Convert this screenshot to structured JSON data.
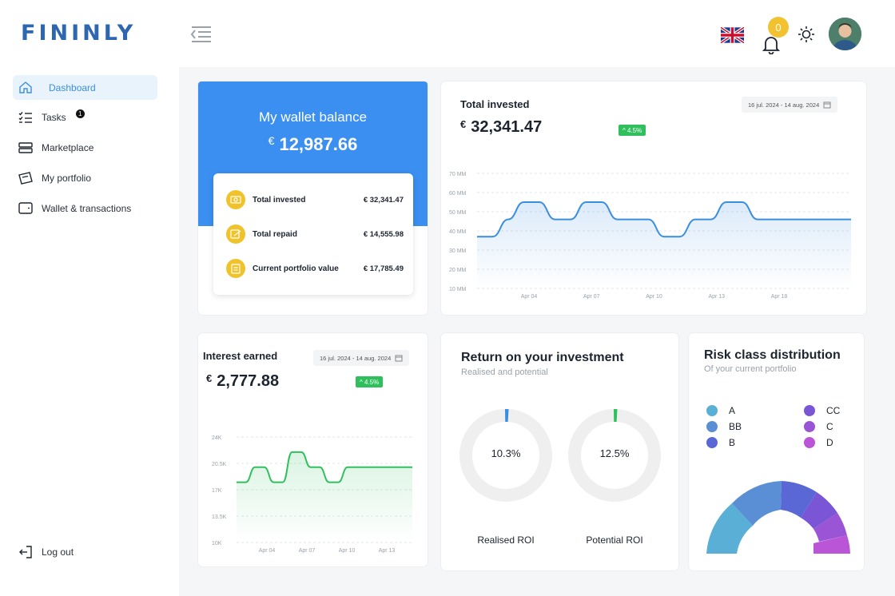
{
  "brand": {
    "name": "FININLY"
  },
  "header": {
    "notification_count": "0"
  },
  "sidebar": {
    "items": [
      {
        "label": "Dashboard",
        "icon": "home-icon",
        "active": true
      },
      {
        "label": "Tasks",
        "icon": "tasks-icon",
        "badge": "1"
      },
      {
        "label": "Marketplace",
        "icon": "marketplace-icon"
      },
      {
        "label": "My portfolio",
        "icon": "portfolio-icon"
      },
      {
        "label": "Wallet & transactions",
        "icon": "wallet-icon"
      }
    ],
    "logout_label": "Log out"
  },
  "wallet": {
    "title": "My wallet balance",
    "currency": "€",
    "amount": "12,987.66",
    "rows": [
      {
        "label": "Total invested",
        "value": "€ 32,341.47"
      },
      {
        "label": "Total repaid",
        "value": "€ 14,555.98"
      },
      {
        "label": "Current portfolio value",
        "value": "€ 17,785.49"
      }
    ]
  },
  "total_invested": {
    "title": "Total invested",
    "currency": "€",
    "amount": "32,341.47",
    "change": "^ 4.5%",
    "date_range": "16 jul. 2024 - 14 aug. 2024"
  },
  "interest_earned": {
    "title": "Interest earned",
    "currency": "€",
    "amount": "2,777.88",
    "change": "^ 4.5%",
    "date_range": "16 jul. 2024 - 14 aug. 2024"
  },
  "roi": {
    "title": "Return on your investment",
    "subtitle": "Realised and potential",
    "realised": {
      "label": "Realised ROI",
      "value": "10.3%",
      "percent": 10.3
    },
    "potential": {
      "label": "Potential ROI",
      "value": "12.5%",
      "percent": 12.5
    }
  },
  "risk": {
    "title": "Risk class distribution",
    "subtitle": "Of your current portfolio",
    "classes": [
      {
        "label": "A",
        "color": "#5aafd6"
      },
      {
        "label": "BB",
        "color": "#5a8fd6"
      },
      {
        "label": "B",
        "color": "#5a68d6"
      },
      {
        "label": "CC",
        "color": "#7a55d6"
      },
      {
        "label": "C",
        "color": "#9a55d6"
      },
      {
        "label": "D",
        "color": "#b955d6"
      }
    ]
  },
  "chart_data": [
    {
      "type": "line",
      "title": "Total invested",
      "y_ticks": [
        "70 MM",
        "60 MM",
        "50 MM",
        "40 MM",
        "30 MM",
        "20 MM",
        "10 MM"
      ],
      "x_ticks": [
        "Apr 04",
        "Apr 07",
        "Apr 10",
        "Apr 13",
        "Apr 18"
      ],
      "ylim": [
        10,
        70
      ],
      "x": [
        0,
        1,
        2,
        3,
        4,
        5,
        6,
        7,
        8,
        9,
        10,
        11,
        12,
        13,
        14,
        15,
        16,
        17,
        18,
        19,
        20,
        21,
        22,
        23,
        24
      ],
      "values": [
        37,
        37,
        46,
        55,
        55,
        46,
        46,
        55,
        55,
        46,
        46,
        46,
        37,
        37,
        46,
        46,
        55,
        55,
        46,
        46,
        46,
        46,
        46,
        46,
        46
      ],
      "color": "#3a8ee0"
    },
    {
      "type": "line",
      "title": "Interest earned",
      "y_ticks": [
        "24K",
        "20.5K",
        "17K",
        "13.5K",
        "10K"
      ],
      "x_ticks": [
        "Apr 04",
        "Apr 07",
        "Apr 10",
        "Apr 13"
      ],
      "ylim": [
        10,
        24
      ],
      "x": [
        0,
        1,
        2,
        3,
        4,
        5,
        6,
        7,
        8,
        9,
        10,
        11,
        12,
        13,
        14,
        15,
        16,
        17,
        18,
        19
      ],
      "values": [
        18,
        18,
        20,
        20,
        18,
        18,
        22,
        22,
        20,
        20,
        18,
        18,
        20,
        20,
        20,
        20,
        20,
        20,
        20,
        20
      ],
      "color": "#2fc05d"
    }
  ]
}
